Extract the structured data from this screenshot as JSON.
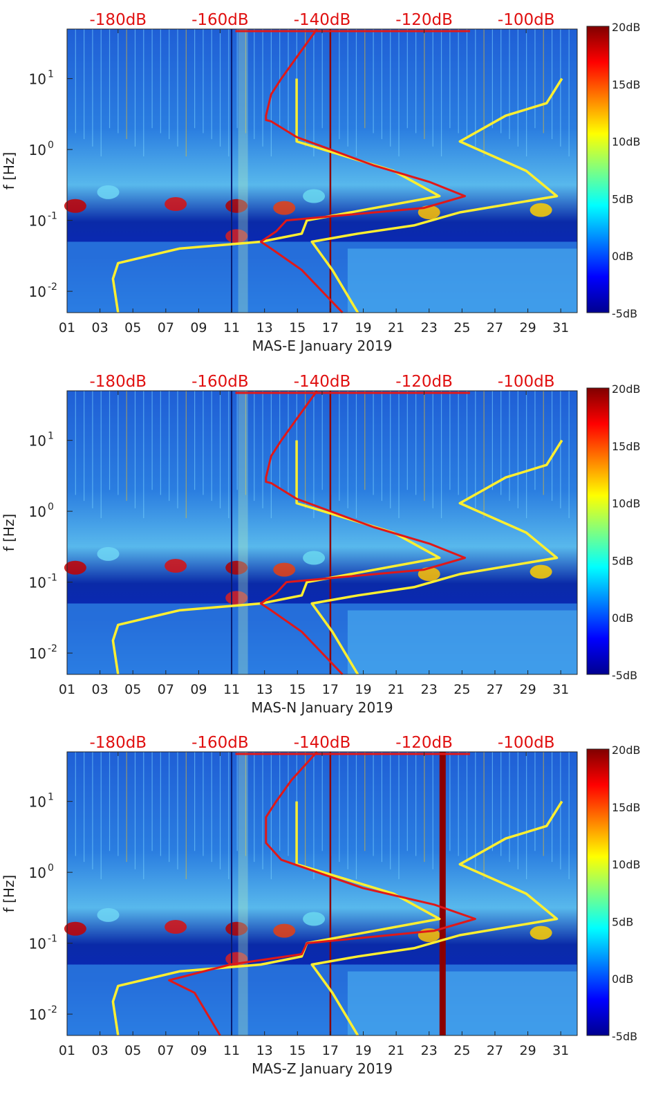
{
  "chart_data": [
    {
      "type": "heatmap",
      "title": "",
      "xlabel": "MAS-E January 2019",
      "ylabel": "f [Hz]",
      "x_ticks": [
        "01",
        "03",
        "05",
        "07",
        "09",
        "11",
        "13",
        "15",
        "17",
        "19",
        "21",
        "23",
        "25",
        "27",
        "29",
        "31"
      ],
      "y_ticks": [
        "10^-2",
        "10^-1",
        "10^0",
        "10^1"
      ],
      "ylim_hz": [
        0.005,
        50
      ],
      "y_scale": "log",
      "top_axis_ticks": [
        "-180dB",
        "-160dB",
        "-140dB",
        "-120dB",
        "-100dB"
      ],
      "colorbar": {
        "min": -5,
        "max": 20,
        "unit": "dB",
        "labels": [
          "20dB",
          "15dB",
          "10dB",
          "5dB",
          "0dB",
          "-5dB"
        ]
      },
      "yellow_curve": [
        [
          -145,
          10
        ],
        [
          -145,
          1.3
        ],
        [
          -126,
          0.5
        ],
        [
          -117,
          0.22
        ],
        [
          -143,
          0.1
        ],
        [
          -144,
          0.065
        ],
        [
          -152,
          0.05
        ],
        [
          -168,
          0.04
        ],
        [
          -180,
          0.025
        ],
        [
          -181,
          0.015
        ],
        [
          -180,
          0.005
        ]
      ],
      "red_curve": [
        [
          -141,
          50
        ],
        [
          -145,
          20
        ],
        [
          -148,
          10
        ],
        [
          -150,
          6
        ],
        [
          -151,
          3
        ],
        [
          -151,
          2.6
        ],
        [
          -150,
          2.5
        ],
        [
          -145,
          1.5
        ],
        [
          -130,
          0.6
        ],
        [
          -119,
          0.35
        ],
        [
          -112,
          0.22
        ],
        [
          -120,
          0.15
        ],
        [
          -147,
          0.1
        ],
        [
          -149,
          0.07
        ],
        [
          -152,
          0.05
        ],
        [
          -150,
          0.04
        ],
        [
          -144,
          0.02
        ],
        [
          -136,
          0.005
        ]
      ],
      "yellow_curve_right": [
        [
          -93,
          10
        ],
        [
          -96,
          4.5
        ],
        [
          -104,
          3
        ],
        [
          -113,
          1.3
        ],
        [
          -100,
          0.5
        ],
        [
          -94,
          0.22
        ],
        [
          -113,
          0.13
        ],
        [
          -122,
          0.085
        ],
        [
          -133,
          0.065
        ],
        [
          -142,
          0.05
        ],
        [
          -138,
          0.02
        ],
        [
          -133,
          0.005
        ]
      ]
    },
    {
      "type": "heatmap",
      "title": "",
      "xlabel": "MAS-N January 2019",
      "ylabel": "f [Hz]",
      "x_ticks": [
        "01",
        "03",
        "05",
        "07",
        "09",
        "11",
        "13",
        "15",
        "17",
        "19",
        "21",
        "23",
        "25",
        "27",
        "29",
        "31"
      ],
      "y_ticks": [
        "10^-2",
        "10^-1",
        "10^0",
        "10^1"
      ],
      "ylim_hz": [
        0.005,
        50
      ],
      "y_scale": "log",
      "top_axis_ticks": [
        "-180dB",
        "-160dB",
        "-140dB",
        "-120dB",
        "-100dB"
      ],
      "colorbar": {
        "min": -5,
        "max": 20,
        "unit": "dB",
        "labels": [
          "20dB",
          "15dB",
          "10dB",
          "5dB",
          "0dB",
          "-5dB"
        ]
      },
      "yellow_curve": [
        [
          -145,
          10
        ],
        [
          -145,
          1.3
        ],
        [
          -126,
          0.5
        ],
        [
          -117,
          0.22
        ],
        [
          -143,
          0.1
        ],
        [
          -144,
          0.065
        ],
        [
          -152,
          0.05
        ],
        [
          -168,
          0.04
        ],
        [
          -180,
          0.025
        ],
        [
          -181,
          0.015
        ],
        [
          -180,
          0.005
        ]
      ],
      "red_curve": [
        [
          -141,
          50
        ],
        [
          -145,
          20
        ],
        [
          -148,
          10
        ],
        [
          -150,
          6
        ],
        [
          -151,
          3
        ],
        [
          -151,
          2.6
        ],
        [
          -150,
          2.5
        ],
        [
          -145,
          1.5
        ],
        [
          -130,
          0.6
        ],
        [
          -119,
          0.35
        ],
        [
          -112,
          0.22
        ],
        [
          -120,
          0.15
        ],
        [
          -147,
          0.1
        ],
        [
          -149,
          0.07
        ],
        [
          -152,
          0.05
        ],
        [
          -150,
          0.04
        ],
        [
          -144,
          0.02
        ],
        [
          -136,
          0.005
        ]
      ],
      "yellow_curve_right": [
        [
          -93,
          10
        ],
        [
          -96,
          4.5
        ],
        [
          -104,
          3
        ],
        [
          -113,
          1.3
        ],
        [
          -100,
          0.5
        ],
        [
          -94,
          0.22
        ],
        [
          -113,
          0.13
        ],
        [
          -122,
          0.085
        ],
        [
          -133,
          0.065
        ],
        [
          -142,
          0.05
        ],
        [
          -138,
          0.02
        ],
        [
          -133,
          0.005
        ]
      ]
    },
    {
      "type": "heatmap",
      "title": "",
      "xlabel": "MAS-Z January 2019",
      "ylabel": "f [Hz]",
      "x_ticks": [
        "01",
        "03",
        "05",
        "07",
        "09",
        "11",
        "13",
        "15",
        "17",
        "19",
        "21",
        "23",
        "25",
        "27",
        "29",
        "31"
      ],
      "y_ticks": [
        "10^-2",
        "10^-1",
        "10^0",
        "10^1"
      ],
      "ylim_hz": [
        0.005,
        50
      ],
      "y_scale": "log",
      "top_axis_ticks": [
        "-180dB",
        "-160dB",
        "-140dB",
        "-120dB",
        "-100dB"
      ],
      "colorbar": {
        "min": -5,
        "max": 20,
        "unit": "dB",
        "labels": [
          "20dB",
          "15dB",
          "10dB",
          "5dB",
          "0dB",
          "-5dB"
        ]
      },
      "yellow_curve": [
        [
          -145,
          10
        ],
        [
          -145,
          1.3
        ],
        [
          -126,
          0.5
        ],
        [
          -117,
          0.22
        ],
        [
          -143,
          0.1
        ],
        [
          -144,
          0.065
        ],
        [
          -152,
          0.05
        ],
        [
          -168,
          0.04
        ],
        [
          -180,
          0.025
        ],
        [
          -181,
          0.015
        ],
        [
          -180,
          0.005
        ]
      ],
      "red_curve": [
        [
          -141,
          50
        ],
        [
          -146,
          20
        ],
        [
          -149,
          10
        ],
        [
          -151,
          6
        ],
        [
          -151,
          3
        ],
        [
          -151,
          2.6
        ],
        [
          -148,
          1.5
        ],
        [
          -132,
          0.6
        ],
        [
          -118,
          0.35
        ],
        [
          -110,
          0.22
        ],
        [
          -118,
          0.15
        ],
        [
          -143,
          0.1
        ],
        [
          -144,
          0.07
        ],
        [
          -158,
          0.05
        ],
        [
          -170,
          0.03
        ],
        [
          -165,
          0.02
        ],
        [
          -160,
          0.005
        ]
      ],
      "yellow_curve_right": [
        [
          -93,
          10
        ],
        [
          -96,
          4.5
        ],
        [
          -104,
          3
        ],
        [
          -113,
          1.3
        ],
        [
          -100,
          0.5
        ],
        [
          -94,
          0.22
        ],
        [
          -113,
          0.13
        ],
        [
          -122,
          0.085
        ],
        [
          -133,
          0.065
        ],
        [
          -142,
          0.05
        ],
        [
          -138,
          0.02
        ],
        [
          -133,
          0.005
        ]
      ],
      "dark_red_band_day": 23.8
    }
  ]
}
